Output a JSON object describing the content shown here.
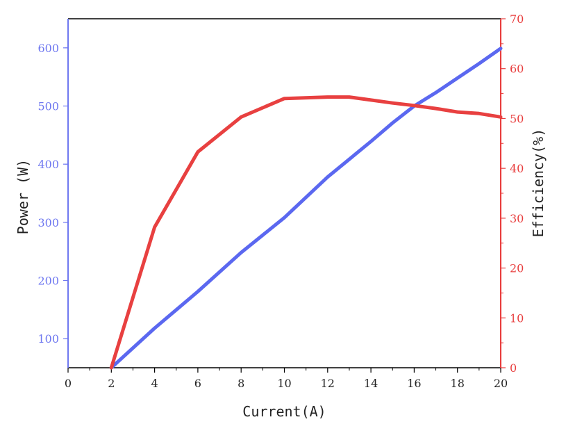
{
  "chart_data": {
    "type": "line",
    "title": "",
    "xlabel": "Current(A)",
    "ylabel_left": "Power (W)",
    "ylabel_right": "Efficiency(%)",
    "xlim": [
      0,
      20
    ],
    "ylim_left": [
      50,
      650
    ],
    "ylim_right": [
      0,
      70
    ],
    "x_ticks": [
      0,
      2,
      4,
      6,
      8,
      10,
      12,
      14,
      16,
      18,
      20
    ],
    "y_left_ticks": [
      100,
      200,
      300,
      400,
      500,
      600
    ],
    "y_right_ticks": [
      0,
      10,
      20,
      30,
      40,
      50,
      60,
      70
    ],
    "grid": false,
    "legend": "none",
    "colors": {
      "left_axis": "#6f78f0",
      "right_axis": "#e83c3c",
      "power_line": "#5b68f0",
      "efficiency_line": "#e84040",
      "frame": "#000000"
    },
    "series": [
      {
        "axis": "left",
        "x": [
          2,
          4,
          6,
          8,
          10,
          12,
          14,
          15,
          16,
          17,
          18,
          19,
          20
        ],
        "values": [
          50,
          118,
          181,
          248,
          308,
          378,
          439,
          471,
          500,
          523,
          548,
          573,
          599
        ]
      },
      {
        "axis": "right",
        "x": [
          2,
          4,
          6,
          8,
          10,
          12,
          13,
          14,
          15,
          16,
          17,
          18,
          19,
          20
        ],
        "values": [
          0,
          28.2,
          43.3,
          50.3,
          54.0,
          54.3,
          54.3,
          53.7,
          53.1,
          52.6,
          52.0,
          51.3,
          51.0,
          50.3
        ]
      }
    ]
  }
}
